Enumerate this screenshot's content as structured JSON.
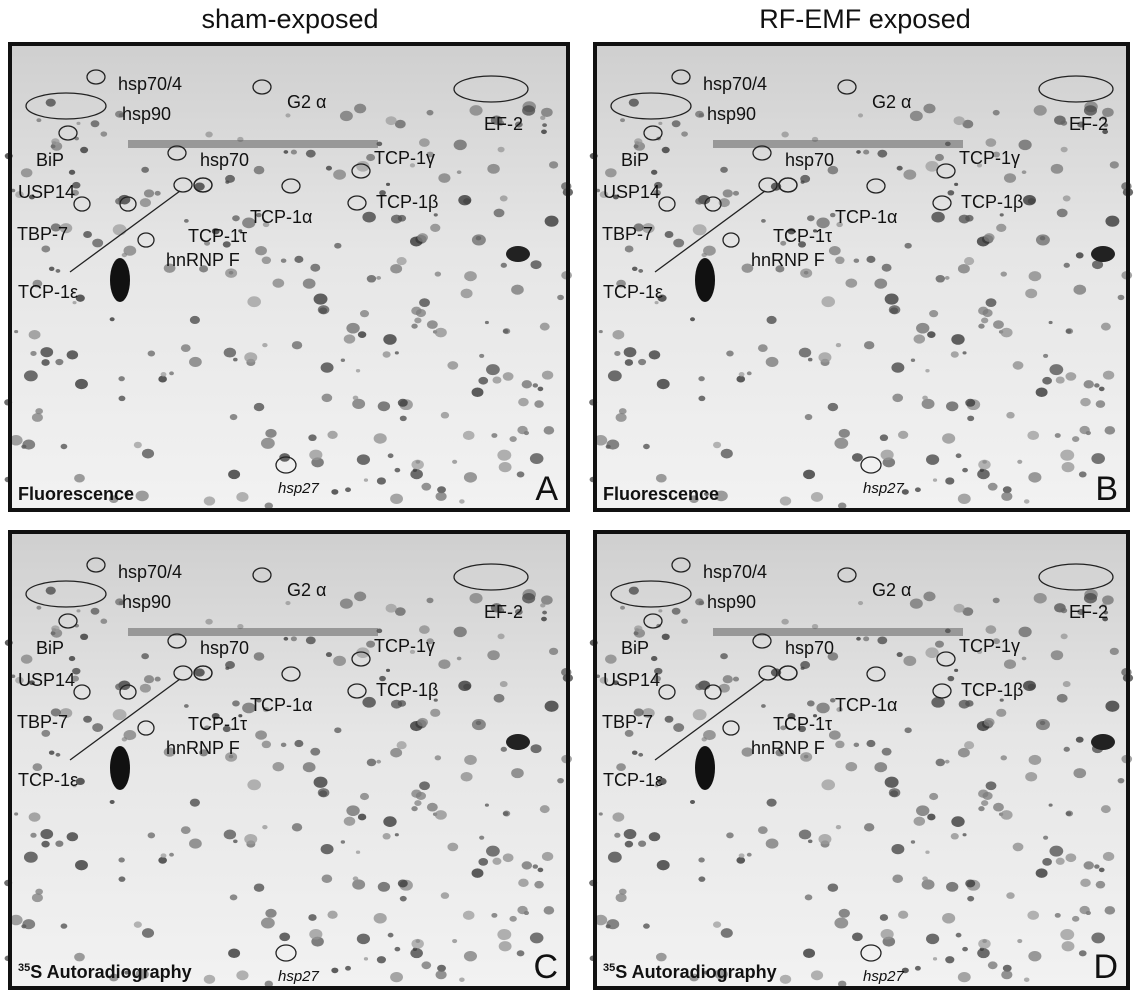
{
  "columns": [
    "sham-exposed",
    "RF-EMF exposed"
  ],
  "panels": [
    {
      "letter": "A",
      "method": "Fluorescence"
    },
    {
      "letter": "B",
      "method": "Fluorescence"
    },
    {
      "letter": "C",
      "isotope": "35",
      "method": "S Autoradiography"
    },
    {
      "letter": "D",
      "isotope": "35",
      "method": "S Autoradiography"
    }
  ],
  "spot_labels": [
    "hsp70/4",
    "hsp90",
    "G2 α",
    "EF-2",
    "BiP",
    "hsp70",
    "TCP-1γ",
    "USP14",
    "TCP-1α",
    "TCP-1β",
    "TCP-1τ",
    "TBP-7",
    "hnRNP F",
    "TCP-1ε",
    "hsp27"
  ]
}
